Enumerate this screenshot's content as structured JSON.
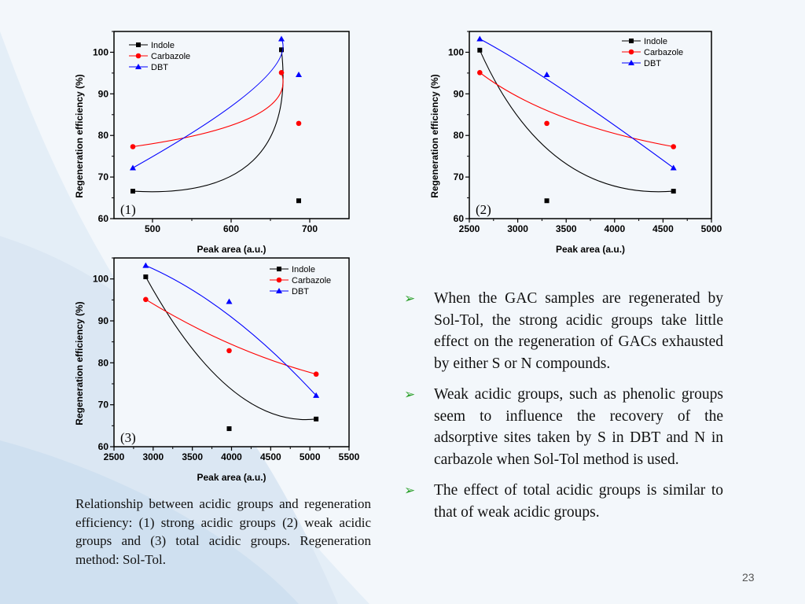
{
  "slide": {
    "page_number": "23",
    "caption": "Relationship between acidic groups and regeneration efficiency: (1) strong acidic groups (2) weak acidic groups and (3) total acidic groups. Regeneration method: Sol-Tol.",
    "bullets": [
      {
        "icon": "arrow-bullet-icon",
        "text": "When the GAC samples are regenerated by Sol-Tol, the strong acidic groups take little effect on the regeneration of GACs exhausted by either S or N compounds."
      },
      {
        "icon": "arrow-bullet-icon",
        "text": "Weak acidic groups, such as phenolic groups seem to influence the recovery of the adsorptive sites taken by S in DBT and N in carbazole when Sol-Tol method is used."
      },
      {
        "icon": "arrow-bullet-icon",
        "text": "The effect of total acidic groups is similar to that of weak acidic groups."
      }
    ],
    "bullet_color": "#2aa02a"
  },
  "chart_data": [
    {
      "type": "scatter",
      "panel_label": "(1)",
      "xlabel": "Peak area (a.u.)",
      "ylabel": "Regeneration efficiency (%)",
      "xlim": [
        451,
        750
      ],
      "ylim": [
        60,
        105
      ],
      "xticks": [
        500,
        600,
        700
      ],
      "yticks": [
        60,
        70,
        80,
        90,
        100
      ],
      "legend": "top-left",
      "series": [
        {
          "name": "Indole",
          "color": "#000000",
          "marker": "square",
          "x": [
            475,
            664,
            686
          ],
          "y": [
            66.6,
            100.6,
            64.3
          ]
        },
        {
          "name": "Carbazole",
          "color": "#ff0000",
          "marker": "circle",
          "x": [
            475,
            664,
            686
          ],
          "y": [
            77.3,
            95.1,
            82.9
          ]
        },
        {
          "name": "DBT",
          "color": "#0000ff",
          "marker": "triangle",
          "x": [
            475,
            664,
            686
          ],
          "y": [
            72.2,
            103.2,
            94.6
          ]
        }
      ]
    },
    {
      "type": "scatter",
      "panel_label": "(2)",
      "xlabel": "Peak area (a.u.)",
      "ylabel": "Regeneration efficiency (%)",
      "xlim": [
        2500,
        5000
      ],
      "ylim": [
        60,
        105
      ],
      "xticks": [
        2500,
        3000,
        3500,
        4000,
        4500,
        5000
      ],
      "yticks": [
        60,
        70,
        80,
        90,
        100
      ],
      "legend": "top-right",
      "series": [
        {
          "name": "Indole",
          "color": "#000000",
          "marker": "square",
          "x": [
            2608,
            3300,
            4608
          ],
          "y": [
            100.5,
            64.3,
            66.6
          ]
        },
        {
          "name": "Carbazole",
          "color": "#ff0000",
          "marker": "circle",
          "x": [
            2608,
            3300,
            4608
          ],
          "y": [
            95.1,
            82.9,
            77.3
          ]
        },
        {
          "name": "DBT",
          "color": "#0000ff",
          "marker": "triangle",
          "x": [
            2608,
            3300,
            4608
          ],
          "y": [
            103.2,
            94.6,
            72.2
          ]
        }
      ]
    },
    {
      "type": "scatter",
      "panel_label": "(3)",
      "xlabel": "Peak area (a.u.)",
      "ylabel": "Regeneration efficiency (%)",
      "xlim": [
        2500,
        5500
      ],
      "ylim": [
        60,
        105
      ],
      "xticks": [
        2500,
        3000,
        3500,
        4000,
        4500,
        5000,
        5500
      ],
      "yticks": [
        60,
        70,
        80,
        90,
        100
      ],
      "legend": "top-right",
      "series": [
        {
          "name": "Indole",
          "color": "#000000",
          "marker": "square",
          "x": [
            2905,
            3970,
            5080
          ],
          "y": [
            100.5,
            64.3,
            66.6
          ]
        },
        {
          "name": "Carbazole",
          "color": "#ff0000",
          "marker": "circle",
          "x": [
            2905,
            3970,
            5080
          ],
          "y": [
            95.1,
            82.9,
            77.3
          ]
        },
        {
          "name": "DBT",
          "color": "#0000ff",
          "marker": "triangle",
          "x": [
            2905,
            3970,
            5080
          ],
          "y": [
            103.2,
            94.6,
            72.2
          ]
        }
      ]
    }
  ]
}
